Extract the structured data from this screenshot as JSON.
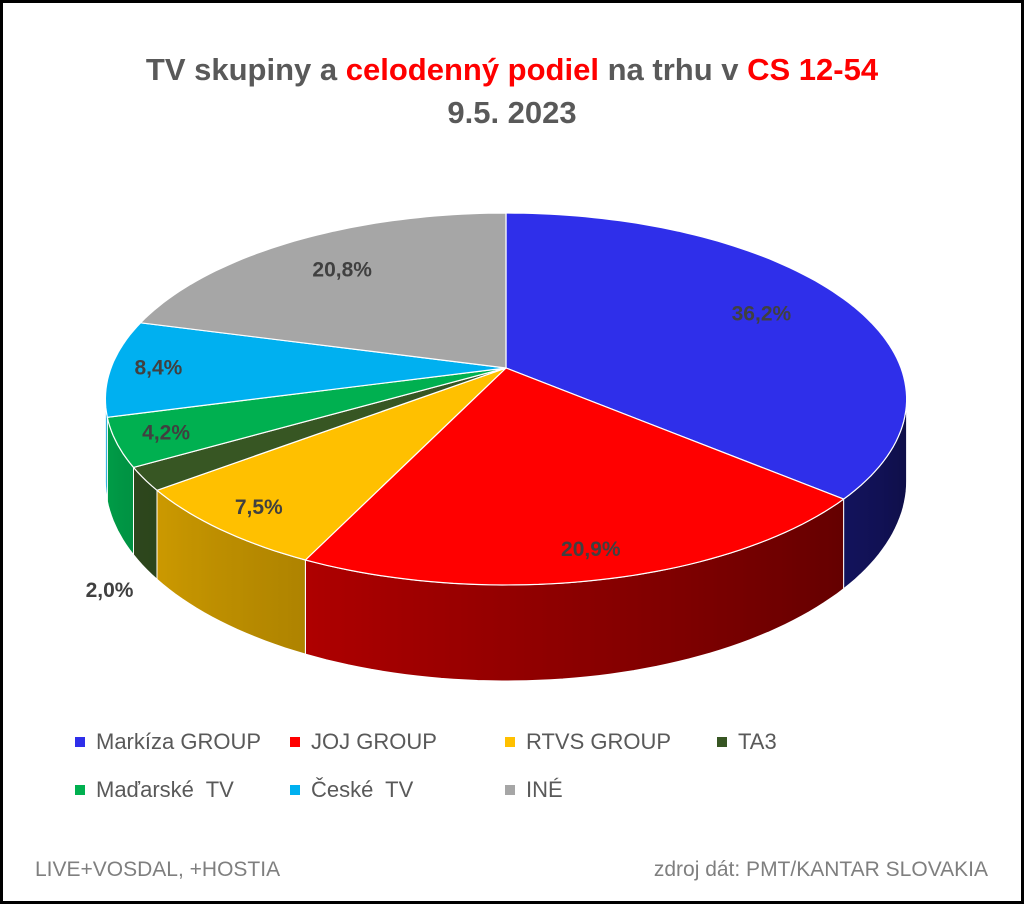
{
  "chart_data": {
    "type": "pie",
    "three_d": true,
    "title_parts": [
      {
        "text": "TV skupiny a ",
        "color": "#595959"
      },
      {
        "text": "celodenný podiel",
        "color": "#FF0000"
      },
      {
        "text": " na trhu v ",
        "color": "#595959"
      },
      {
        "text": "CS 12-54",
        "color": "#FF0000"
      }
    ],
    "subtitle": "9.5. 2023",
    "categories": [
      "Markíza GROUP",
      "JOJ GROUP",
      "RTVS GROUP",
      "TA3",
      "Maďarské  TV",
      "České  TV",
      "INÉ"
    ],
    "values": [
      36.2,
      20.9,
      7.5,
      2.0,
      4.2,
      8.4,
      20.8
    ],
    "data_labels": [
      "36,2%",
      "20,9%",
      "7,5%",
      "2,0%",
      "4,2%",
      "8,4%",
      "20,8%"
    ],
    "colors": [
      "#2F2FEA",
      "#FF0000",
      "#FFC000",
      "#375623",
      "#00B050",
      "#00B0F0",
      "#A6A6A6"
    ],
    "legend_position": "bottom"
  },
  "footer": {
    "left": "LIVE+VOSDAL, +HOSTIA",
    "right": "zdroj dát: PMT/KANTAR SLOVAKIA"
  }
}
